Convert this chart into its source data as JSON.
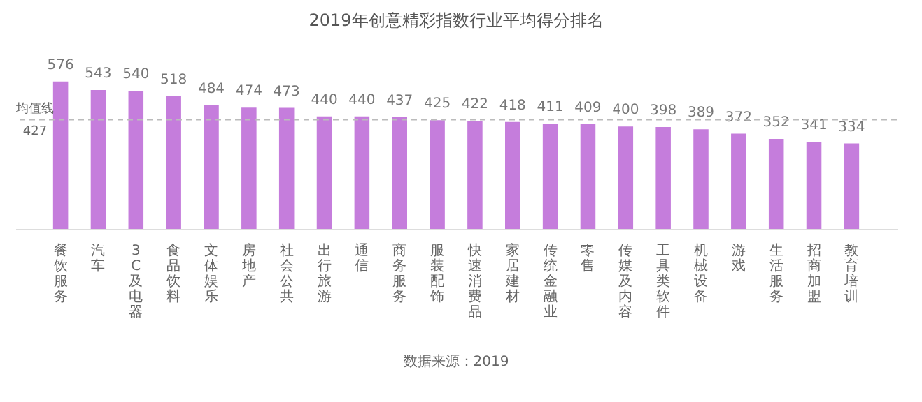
{
  "chart_data": {
    "type": "bar",
    "title": "2019年创意精彩指数行业平均得分排名",
    "categories": [
      "餐饮服务",
      "汽车",
      "3C及电器",
      "食品饮料",
      "文体娱乐",
      "房地产",
      "社会公共",
      "出行旅游",
      "通信",
      "商务服务",
      "服装配饰",
      "快速消费品",
      "家居建材",
      "传统金融业",
      "零售",
      "传媒及内容",
      "工具类软件",
      "机械设备",
      "游戏",
      "生活服务",
      "招商加盟",
      "教育培训"
    ],
    "series": [
      {
        "color": "#c57ddc",
        "values": [
          576,
          543,
          540,
          518,
          484,
          474,
          473,
          440,
          440,
          437,
          425,
          422,
          418,
          411,
          409,
          400,
          398,
          389,
          372,
          352,
          341,
          334
        ]
      }
    ],
    "data_labels": true,
    "tick_labels": "x",
    "grid": false,
    "ref_lines": [
      {
        "axis": "y",
        "value": 427,
        "label": "均值线",
        "color": "#bbbbbb",
        "line_style": "dashed"
      }
    ],
    "annotations": [
      {
        "text": "427",
        "y": 427
      },
      "数据来源：2019"
    ]
  }
}
